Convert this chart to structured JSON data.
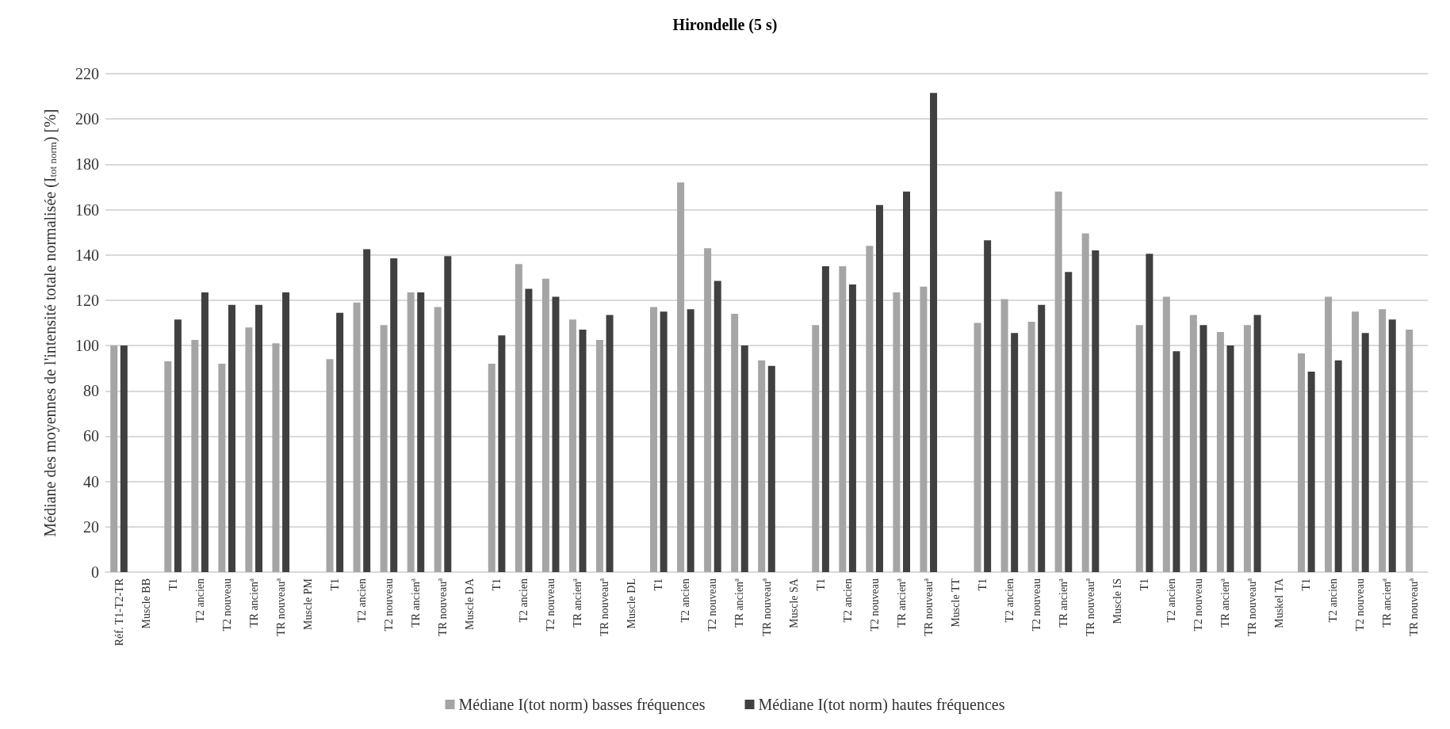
{
  "chart_data": {
    "type": "bar",
    "title": "Hirondelle (5 s)",
    "ylabel": "Médiane des moyennes de l'intensité totale normalisée (I$_{tot norm}$) [%]",
    "categories": [
      "Réf. T1-T2-TR",
      "Muscle BB",
      "T1",
      "T2 ancien",
      "T2 nouveau",
      "TR ancienª",
      "TR nouveauª",
      "Muscle PM",
      "T1",
      "T2 ancien",
      "T2 nouveau",
      "TR ancienª",
      "TR nouveauª",
      "Muscle DA",
      "T1",
      "T2 ancien",
      "T2 nouveau",
      "TR ancienª",
      "TR nouveauª",
      "Muscle DL",
      "T1",
      "T2 ancien",
      "T2 nouveau",
      "TR ancienª",
      "TR nouveauª",
      "Muscle SA",
      "T1",
      "T2 ancien",
      "T2 nouveau",
      "TR ancienª",
      "TR nouveauª",
      "Muscle TT",
      "T1",
      "T2 ancien",
      "T2 nouveau",
      "TR ancienª",
      "TR nouveauª",
      "Muscle IS",
      "T1",
      "T2 ancien",
      "T2 nouveau",
      "TR ancienª",
      "TR nouveauª",
      "Muskel TA",
      "T1",
      "T2 ancien",
      "T2 nouveau",
      "TR ancienª",
      "TR nouveauª"
    ],
    "series": [
      {
        "name": "Médiane I(tot norm) basses fréquences",
        "color": "#a5a5a5",
        "values": [
          100,
          null,
          93,
          102.5,
          92,
          108,
          101,
          null,
          94,
          119,
          109,
          123.5,
          117,
          null,
          92,
          136,
          129.5,
          111.5,
          102.5,
          null,
          117,
          172,
          143,
          114,
          93.5,
          null,
          109,
          135,
          144,
          123.5,
          126,
          null,
          110,
          120.5,
          110.5,
          168,
          149.5,
          null,
          109,
          121.5,
          113.5,
          106,
          109,
          null,
          96.5,
          121.5,
          115,
          116,
          107
        ]
      },
      {
        "name": "Médiane I(tot norm) hautes fréquences",
        "color": "#404040",
        "values": [
          100,
          null,
          111.5,
          123.5,
          118,
          118,
          123.5,
          null,
          114.5,
          142.5,
          138.5,
          123.5,
          139.5,
          null,
          104.5,
          125,
          121.5,
          107,
          113.5,
          null,
          115,
          116,
          128.5,
          100,
          91,
          null,
          135,
          127,
          162,
          168,
          211.5,
          null,
          146.5,
          105.5,
          118,
          132.5,
          142,
          null,
          140.5,
          97.5,
          109,
          100,
          113.5,
          null,
          88.5,
          93.5,
          105.5,
          111.5,
          null
        ]
      }
    ],
    "ylim": [
      0,
      220
    ],
    "yticks": [
      0,
      20,
      40,
      60,
      80,
      100,
      120,
      140,
      160,
      180,
      200,
      220
    ],
    "grid": "y",
    "legend": "bottom"
  }
}
